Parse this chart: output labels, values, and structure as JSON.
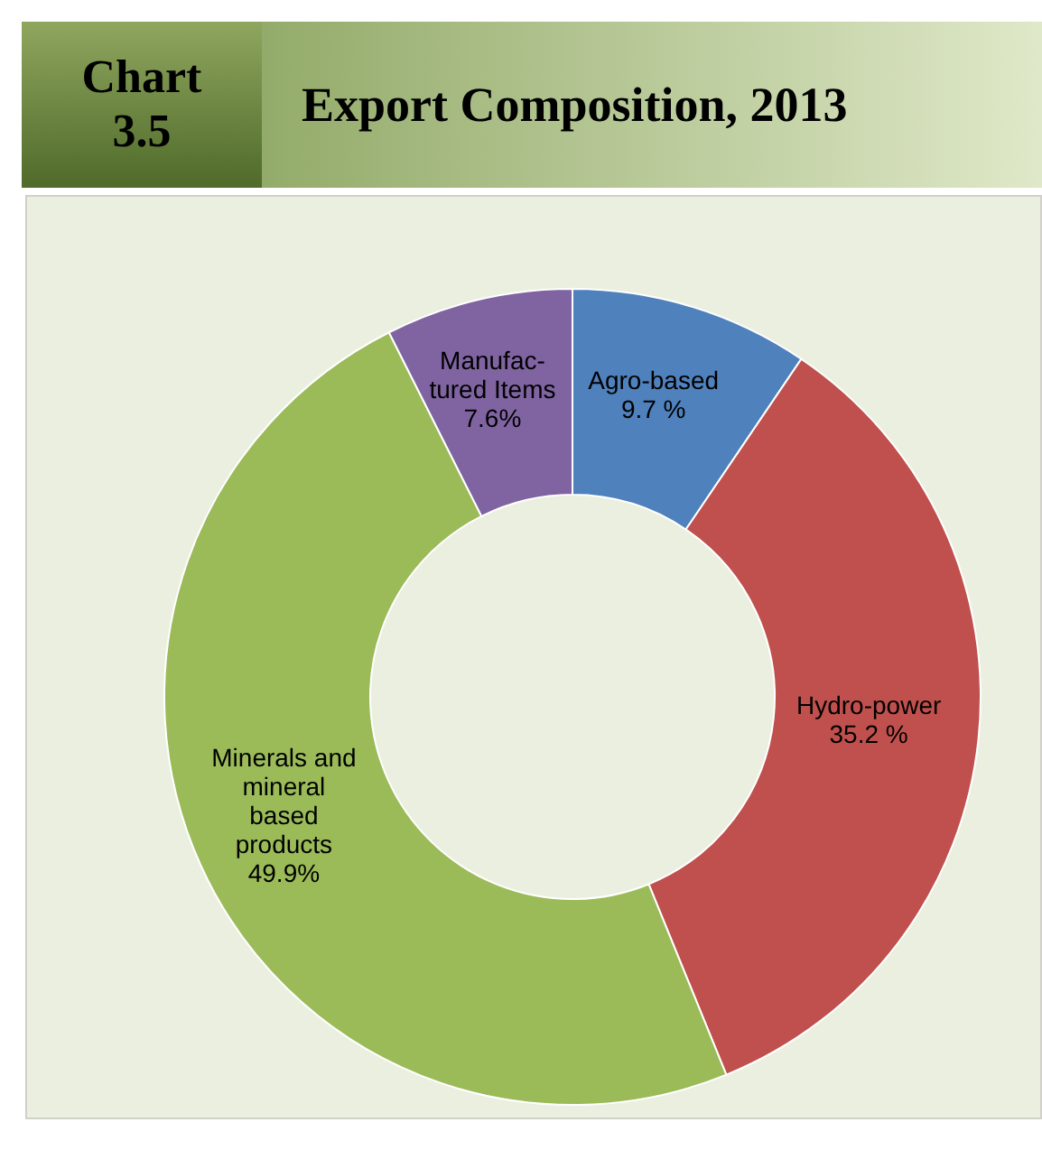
{
  "chart_data": {
    "type": "donut",
    "title": "Export Composition, 2013",
    "annotations": [
      "Chart 3.5"
    ],
    "categories": [
      "Agro-based",
      "Hydro-power",
      "Minerals and mineral based products",
      "Manufac-tured Items"
    ],
    "values": [
      9.7,
      35.2,
      49.9,
      7.6
    ],
    "value_labels": [
      "9.7 %",
      "35.2 %",
      "49.9%",
      "7.6%"
    ],
    "colors": [
      "#4f81bd",
      "#c0504d",
      "#9bbb59",
      "#8064a2"
    ]
  }
}
